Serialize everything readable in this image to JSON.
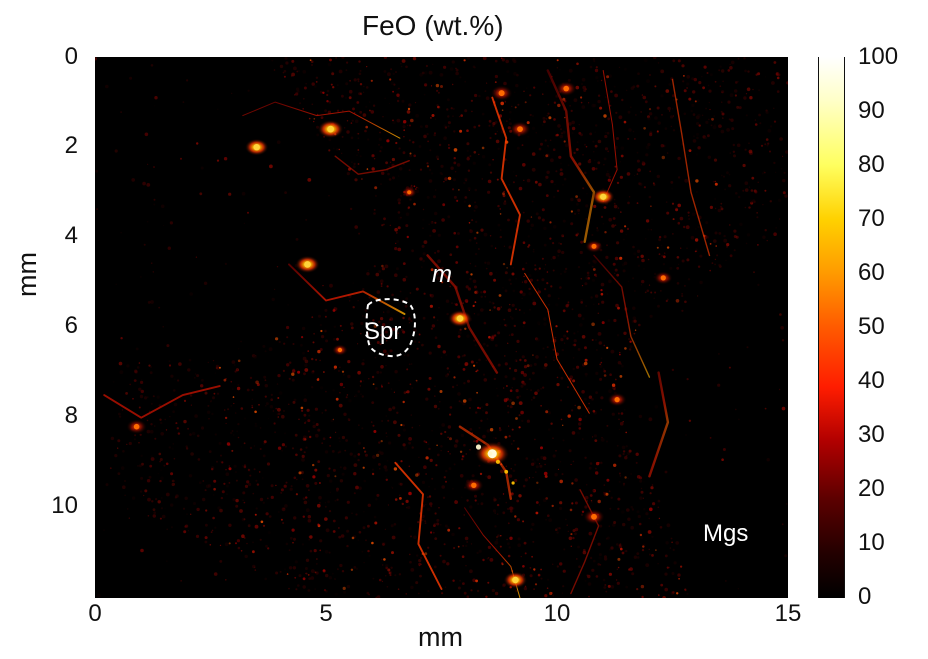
{
  "chart_data": {
    "type": "heatmap",
    "title": "FeO (wt.%)",
    "xlabel": "mm",
    "ylabel": "mm",
    "xlim": [
      0,
      15
    ],
    "ylim": [
      0,
      12
    ],
    "x_ticks": [
      "0",
      "5",
      "10",
      "15"
    ],
    "y_ticks": [
      "0",
      "2",
      "4",
      "6",
      "8",
      "10"
    ],
    "colorbar": {
      "min": 0,
      "max": 100,
      "ticks": [
        "100",
        "90",
        "80",
        "70",
        "60",
        "50",
        "40",
        "30",
        "20",
        "10",
        "0"
      ],
      "colormap": "hot"
    },
    "annotations": [
      {
        "text": "m",
        "x": 7.4,
        "y": 5.1,
        "style": "italic"
      },
      {
        "text": "Spr",
        "x": 6.1,
        "y": 6.1,
        "outline": "dashed"
      },
      {
        "text": "Mgs",
        "x": 13.9,
        "y": 10.5
      }
    ],
    "features": [
      {
        "x": 0.9,
        "y": 8.2,
        "value": 45
      },
      {
        "x": 3.5,
        "y": 2.0,
        "value": 55
      },
      {
        "x": 4.6,
        "y": 4.6,
        "value": 58
      },
      {
        "x": 5.1,
        "y": 1.6,
        "value": 62
      },
      {
        "x": 7.9,
        "y": 5.8,
        "value": 56
      },
      {
        "x": 8.6,
        "y": 8.8,
        "value": 92
      },
      {
        "x": 8.2,
        "y": 9.5,
        "value": 42
      },
      {
        "x": 8.8,
        "y": 0.8,
        "value": 50
      },
      {
        "x": 9.2,
        "y": 1.6,
        "value": 48
      },
      {
        "x": 10.2,
        "y": 0.7,
        "value": 46
      },
      {
        "x": 11.0,
        "y": 3.1,
        "value": 52
      },
      {
        "x": 10.8,
        "y": 4.2,
        "value": 35
      },
      {
        "x": 12.3,
        "y": 4.9,
        "value": 38
      },
      {
        "x": 11.3,
        "y": 7.6,
        "value": 40
      },
      {
        "x": 10.8,
        "y": 10.2,
        "value": 48
      },
      {
        "x": 9.1,
        "y": 11.6,
        "value": 55
      },
      {
        "x": 5.3,
        "y": 6.5,
        "value": 28
      },
      {
        "x": 6.8,
        "y": 3.0,
        "value": 26
      }
    ]
  }
}
